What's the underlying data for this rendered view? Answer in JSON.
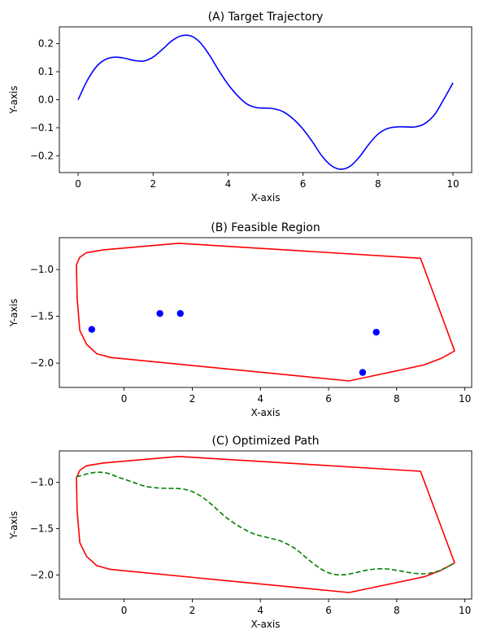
{
  "figure": {
    "background": "#ffffff"
  },
  "chart_data": [
    {
      "type": "line",
      "title": "(A) Target Trajectory",
      "xlabel": "X-axis",
      "ylabel": "Y-axis",
      "xlim": [
        -0.5,
        10.5
      ],
      "ylim": [
        -0.26,
        0.26
      ],
      "xticks": [
        0,
        2,
        4,
        6,
        8,
        10
      ],
      "xtick_labels": [
        "0",
        "2",
        "4",
        "6",
        "8",
        "10"
      ],
      "yticks": [
        -0.2,
        -0.1,
        0.0,
        0.1,
        0.2
      ],
      "ytick_labels": [
        "−0.2",
        "−0.1",
        "0.0",
        "0.1",
        "0.2"
      ],
      "grid": false,
      "series": [
        {
          "style": "solid",
          "color": "#0000ff",
          "x": [
            0,
            0.25,
            0.5,
            0.75,
            1.0,
            1.25,
            1.5,
            1.75,
            2.0,
            2.25,
            2.5,
            2.75,
            3.0,
            3.25,
            3.5,
            3.75,
            4.0,
            4.25,
            4.5,
            4.75,
            5.0,
            5.25,
            5.5,
            5.75,
            6.0,
            6.25,
            6.5,
            6.75,
            7.0,
            7.25,
            7.5,
            7.75,
            8.0,
            8.25,
            8.5,
            8.75,
            9.0,
            9.25,
            9.5,
            9.75,
            10.0
          ],
          "y": [
            0.0,
            0.07,
            0.12,
            0.145,
            0.152,
            0.148,
            0.14,
            0.138,
            0.152,
            0.18,
            0.21,
            0.228,
            0.228,
            0.205,
            0.16,
            0.105,
            0.055,
            0.015,
            -0.015,
            -0.028,
            -0.03,
            -0.033,
            -0.045,
            -0.07,
            -0.105,
            -0.15,
            -0.2,
            -0.235,
            -0.248,
            -0.238,
            -0.205,
            -0.16,
            -0.123,
            -0.103,
            -0.097,
            -0.097,
            -0.097,
            -0.085,
            -0.055,
            0.0,
            0.06
          ]
        }
      ]
    },
    {
      "type": "scatter",
      "title": "(B) Feasible Region",
      "xlabel": "X-axis",
      "ylabel": "Y-axis",
      "xlim": [
        -1.9,
        10.2
      ],
      "ylim": [
        -2.26,
        -0.66
      ],
      "xticks": [
        0,
        2,
        4,
        6,
        8,
        10
      ],
      "xtick_labels": [
        "0",
        "2",
        "4",
        "6",
        "8",
        "10"
      ],
      "yticks": [
        -2.0,
        -1.5,
        -1.0
      ],
      "ytick_labels": [
        "−2.0",
        "−1.5",
        "−1.0"
      ],
      "grid": false,
      "boundary": {
        "color": "#ff0000",
        "x": [
          -1.4,
          -1.3,
          -1.1,
          -0.6,
          1.6,
          8.7,
          9.7,
          9.3,
          8.8,
          6.6,
          -0.4,
          -0.8,
          -1.1,
          -1.3,
          -1.38,
          -1.4
        ],
        "y": [
          -0.95,
          -0.87,
          -0.82,
          -0.79,
          -0.72,
          -0.88,
          -1.87,
          -1.95,
          -2.02,
          -2.19,
          -1.94,
          -1.9,
          -1.8,
          -1.65,
          -1.3,
          -0.95
        ]
      },
      "points": {
        "color": "#0000ff",
        "x": [
          -0.95,
          1.05,
          1.65,
          7.4,
          7.0
        ],
        "y": [
          -1.64,
          -1.47,
          -1.47,
          -1.67,
          -2.1
        ]
      }
    },
    {
      "type": "line",
      "title": "(C) Optimized Path",
      "xlabel": "X-axis",
      "ylabel": "Y-axis",
      "xlim": [
        -1.9,
        10.2
      ],
      "ylim": [
        -2.26,
        -0.66
      ],
      "xticks": [
        0,
        2,
        4,
        6,
        8,
        10
      ],
      "xtick_labels": [
        "0",
        "2",
        "4",
        "6",
        "8",
        "10"
      ],
      "yticks": [
        -2.0,
        -1.5,
        -1.0
      ],
      "ytick_labels": [
        "−2.0",
        "−1.5",
        "−1.0"
      ],
      "grid": false,
      "boundary": {
        "color": "#ff0000",
        "x": [
          -1.4,
          -1.3,
          -1.1,
          -0.6,
          1.6,
          8.7,
          9.7,
          9.3,
          8.8,
          6.6,
          -0.4,
          -0.8,
          -1.1,
          -1.3,
          -1.38,
          -1.4
        ],
        "y": [
          -0.95,
          -0.87,
          -0.82,
          -0.79,
          -0.72,
          -0.88,
          -1.87,
          -1.95,
          -2.02,
          -2.19,
          -1.94,
          -1.9,
          -1.8,
          -1.65,
          -1.3,
          -0.95
        ]
      },
      "series": [
        {
          "style": "dashed",
          "color": "#008000",
          "x": [
            -1.4,
            -1.1,
            -0.8,
            -0.5,
            -0.2,
            0.2,
            0.6,
            1.0,
            1.4,
            1.7,
            2.0,
            2.3,
            2.6,
            3.0,
            3.4,
            3.8,
            4.2,
            4.6,
            5.0,
            5.3,
            5.6,
            5.9,
            6.2,
            6.5,
            6.8,
            7.1,
            7.4,
            7.7,
            8.0,
            8.3,
            8.6,
            8.9,
            9.2,
            9.5,
            9.7
          ],
          "y": [
            -0.94,
            -0.91,
            -0.89,
            -0.9,
            -0.94,
            -0.99,
            -1.04,
            -1.06,
            -1.065,
            -1.07,
            -1.1,
            -1.16,
            -1.25,
            -1.38,
            -1.48,
            -1.555,
            -1.595,
            -1.635,
            -1.71,
            -1.8,
            -1.89,
            -1.96,
            -1.995,
            -1.995,
            -1.975,
            -1.95,
            -1.935,
            -1.935,
            -1.95,
            -1.97,
            -1.985,
            -1.985,
            -1.96,
            -1.91,
            -1.87
          ]
        }
      ]
    }
  ]
}
